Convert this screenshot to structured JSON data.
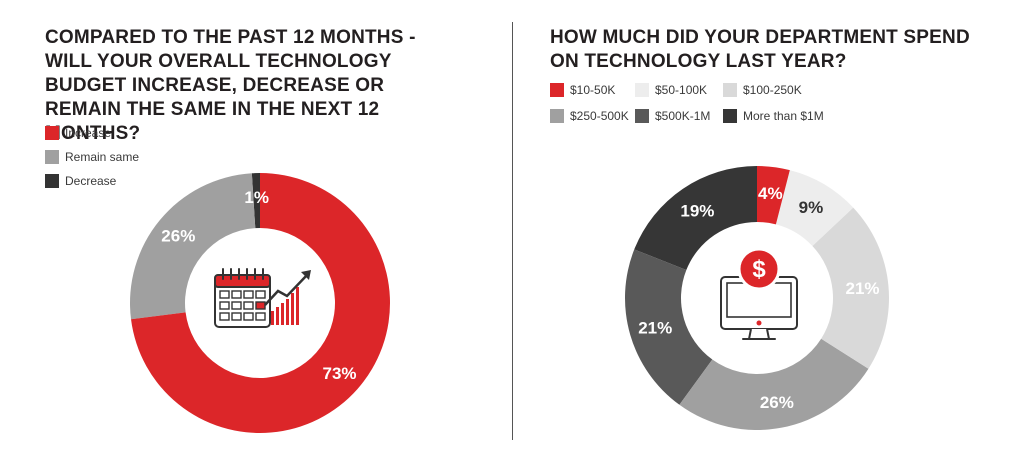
{
  "chart_data": [
    {
      "type": "pie",
      "title": "COMPARED TO THE PAST 12 MONTHS - WILL YOUR OVERALL TECHNOLOGY BUDGET INCREASE, DECREASE OR REMAIN THE SAME IN THE NEXT 12 MONTHS?",
      "categories": [
        "Increase",
        "Remain same",
        "Decrease"
      ],
      "values": [
        73,
        26,
        1
      ],
      "value_labels": [
        "73%",
        "26%",
        "1%"
      ],
      "colors": [
        "#dc2629",
        "#a0a0a0",
        "#333333"
      ],
      "label_colors": [
        "#ffffff",
        "#ffffff",
        "#ffffff"
      ],
      "center_icon": "calendar-growth-icon"
    },
    {
      "type": "pie",
      "title": "HOW MUCH DID YOUR DEPARTMENT SPEND ON TECHNOLOGY LAST YEAR?",
      "categories": [
        "$10-50K",
        "$50-100K",
        "$100-250K",
        "$250-500K",
        "$500K-1M",
        "More than $1M"
      ],
      "values": [
        4,
        9,
        21,
        26,
        21,
        19
      ],
      "value_labels": [
        "4%",
        "9%",
        "21%",
        "26%",
        "21%",
        "19%"
      ],
      "colors": [
        "#dc2629",
        "#ededed",
        "#d9d9d9",
        "#a0a0a0",
        "#595959",
        "#363636"
      ],
      "label_colors": [
        "#ffffff",
        "#333333",
        "#ffffff",
        "#ffffff",
        "#ffffff",
        "#ffffff"
      ],
      "center_icon": "computer-dollar-icon"
    }
  ]
}
